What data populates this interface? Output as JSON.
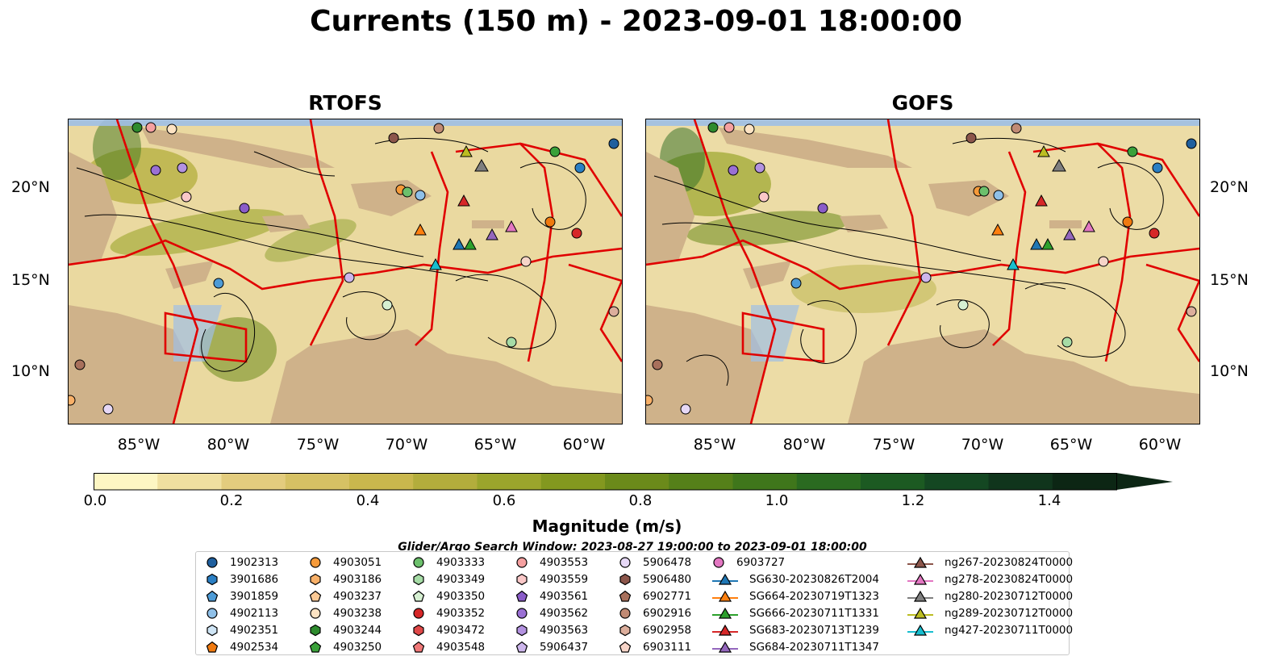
{
  "title": "Currents (150 m) - 2023-09-01 18:00:00",
  "panels": [
    {
      "title": "RTOFS"
    },
    {
      "title": "GOFS"
    }
  ],
  "lat_labels": [
    "20°N",
    "15°N",
    "10°N"
  ],
  "lon_labels": [
    "85°W",
    "80°W",
    "75°W",
    "70°W",
    "65°W",
    "60°W"
  ],
  "colorbar": {
    "label": "Magnitude (m/s)",
    "ticks": [
      "0.0",
      "0.2",
      "0.4",
      "0.6",
      "0.8",
      "1.0",
      "1.2",
      "1.4"
    ],
    "range": [
      0,
      1.5
    ],
    "colors": [
      "#fdf6c3",
      "#f0e0a0",
      "#e3cc7e",
      "#d6c164",
      "#c9b74d",
      "#b3ad3c",
      "#9ba52c",
      "#83981f",
      "#6b8a1a",
      "#558019",
      "#3f761b",
      "#2a6a20",
      "#1c5a22",
      "#144722",
      "#10351c",
      "#0c2614"
    ]
  },
  "search_window": "Glider/Argo Search Window: 2023-08-27 19:00:00 to 2023-09-01 18:00:00",
  "legend": [
    {
      "label": "1902313",
      "marker": "circle",
      "color": "#1f5f9e"
    },
    {
      "label": "3901686",
      "marker": "hexagon",
      "color": "#2a7fc4"
    },
    {
      "label": "3901859",
      "marker": "pentagon",
      "color": "#4d9bd6"
    },
    {
      "label": "4902113",
      "marker": "circle",
      "color": "#8fc0e8"
    },
    {
      "label": "4902351",
      "marker": "hexagon",
      "color": "#cfe5f5"
    },
    {
      "label": "4902534",
      "marker": "pentagon",
      "color": "#f07a10"
    },
    {
      "label": "4903051",
      "marker": "circle",
      "color": "#f59a3a"
    },
    {
      "label": "4903186",
      "marker": "hexagon",
      "color": "#f8b068"
    },
    {
      "label": "4903237",
      "marker": "pentagon",
      "color": "#fbc995"
    },
    {
      "label": "4903238",
      "marker": "circle",
      "color": "#fde3c3"
    },
    {
      "label": "4903244",
      "marker": "hexagon",
      "color": "#2e8b2e"
    },
    {
      "label": "4903250",
      "marker": "pentagon",
      "color": "#3aa13a"
    },
    {
      "label": "4903333",
      "marker": "circle",
      "color": "#6cc06c"
    },
    {
      "label": "4903349",
      "marker": "hexagon",
      "color": "#a6dca6"
    },
    {
      "label": "4903350",
      "marker": "pentagon",
      "color": "#d6f0d2"
    },
    {
      "label": "4903352",
      "marker": "circle",
      "color": "#d62728"
    },
    {
      "label": "4903472",
      "marker": "hexagon",
      "color": "#e04848"
    },
    {
      "label": "4903548",
      "marker": "pentagon",
      "color": "#f07878"
    },
    {
      "label": "4903553",
      "marker": "circle",
      "color": "#f5a0a0"
    },
    {
      "label": "4903559",
      "marker": "hexagon",
      "color": "#fac8c8"
    },
    {
      "label": "4903561",
      "marker": "pentagon",
      "color": "#8a5cc8"
    },
    {
      "label": "4903562",
      "marker": "circle",
      "color": "#9a70d4"
    },
    {
      "label": "4903563",
      "marker": "hexagon",
      "color": "#b392e0"
    },
    {
      "label": "5906437",
      "marker": "pentagon",
      "color": "#cdb6ec"
    },
    {
      "label": "5906478",
      "marker": "circle",
      "color": "#e6d8f6"
    },
    {
      "label": "5906480",
      "marker": "hexagon",
      "color": "#8c564b"
    },
    {
      "label": "6902771",
      "marker": "pentagon",
      "color": "#a8705c"
    },
    {
      "label": "6902916",
      "marker": "circle",
      "color": "#c08a74"
    },
    {
      "label": "6902958",
      "marker": "hexagon",
      "color": "#dcae9c"
    },
    {
      "label": "6903111",
      "marker": "pentagon",
      "color": "#f6d4c8"
    },
    {
      "label": "6903727",
      "marker": "circle",
      "color": "#e377c2"
    },
    {
      "label": "SG630-20230826T2004",
      "marker": "triangle",
      "color": "#1f77b4"
    },
    {
      "label": "SG664-20230719T1323",
      "marker": "triangle",
      "color": "#ff7f0e"
    },
    {
      "label": "SG666-20230711T1331",
      "marker": "triangle",
      "color": "#2ca02c"
    },
    {
      "label": "SG683-20230713T1239",
      "marker": "triangle",
      "color": "#d62728"
    },
    {
      "label": "SG684-20230711T1347",
      "marker": "triangle",
      "color": "#9467bd"
    },
    {
      "label": "ng267-20230824T0000",
      "marker": "triangle",
      "color": "#8c564b"
    },
    {
      "label": "ng278-20230824T0000",
      "marker": "triangle",
      "color": "#e377c2"
    },
    {
      "label": "ng280-20230712T0000",
      "marker": "triangle",
      "color": "#7f7f7f"
    },
    {
      "label": "ng289-20230712T0000",
      "marker": "triangle",
      "color": "#bcbd22"
    },
    {
      "label": "ng427-20230711T0000",
      "marker": "triangle",
      "color": "#17becf"
    }
  ]
}
